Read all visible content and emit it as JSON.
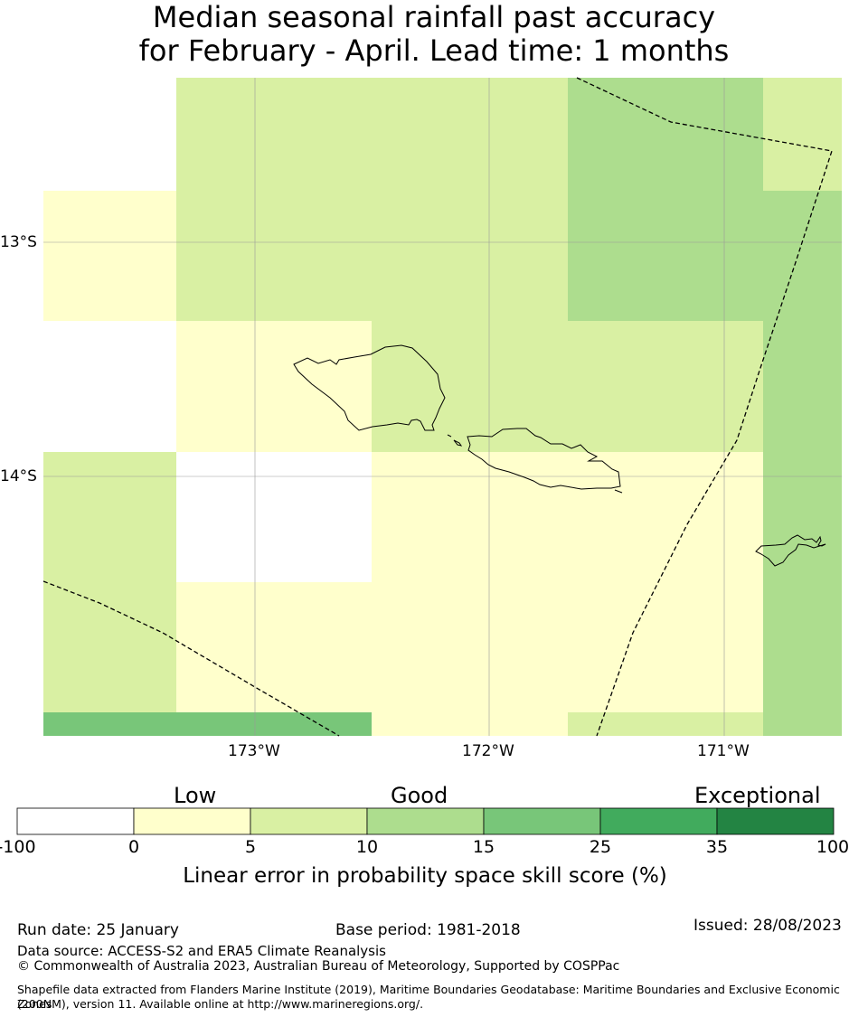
{
  "title": {
    "line1": "Median seasonal rainfall past accuracy",
    "line2": "for February - April. Lead time: 1 months"
  },
  "map": {
    "lat_labels": [
      "13°S",
      "14°S"
    ],
    "lon_labels": [
      "173°W",
      "172°W",
      "171°W"
    ],
    "colors": {
      "c0": "#ffffff",
      "c1": "#ffffcc",
      "c2": "#d9f0a3",
      "c3": "#addd8e",
      "c4": "#78c679",
      "c5": "#41ab5d",
      "c6": "#238443"
    },
    "skill_grid_note": "cell classes: 0 = -100..0, 1 = 0..5, 2 = 5..10, 3 = 10..15, 4 = 15..25",
    "skill_grid": [
      [
        0,
        2,
        2,
        3,
        2
      ],
      [
        1,
        2,
        2,
        3,
        3
      ],
      [
        0,
        1,
        2,
        2,
        3
      ],
      [
        2,
        0,
        1,
        1,
        3
      ],
      [
        2,
        1,
        1,
        1,
        3
      ],
      [
        4,
        4,
        1,
        2,
        3
      ]
    ]
  },
  "colorbar": {
    "categories": [
      "Low",
      "Good",
      "Exceptional"
    ],
    "ticks": [
      "-100",
      "0",
      "5",
      "10",
      "15",
      "25",
      "35",
      "100"
    ],
    "title": "Linear error in probability space skill score (%)"
  },
  "footer": {
    "run_date": "Run date: 25 January",
    "base_period": "Base period: 1981-2018",
    "issued": "Issued: 28/08/2023",
    "data_source": "Data source: ACCESS-S2 and ERA5 Climate Reanalysis",
    "copyright": "© Commonwealth of Australia 2023, Australian Bureau of Meteorology, Supported by COSPPac",
    "shapefile_line1": "Shapefile data extracted from Flanders Marine Institute (2019), Maritime Boundaries Geodatabase: Maritime Boundaries and Exclusive Economic Zones",
    "shapefile_line2": "(200NM), version 11. Available online at http://www.marineregions.org/."
  }
}
